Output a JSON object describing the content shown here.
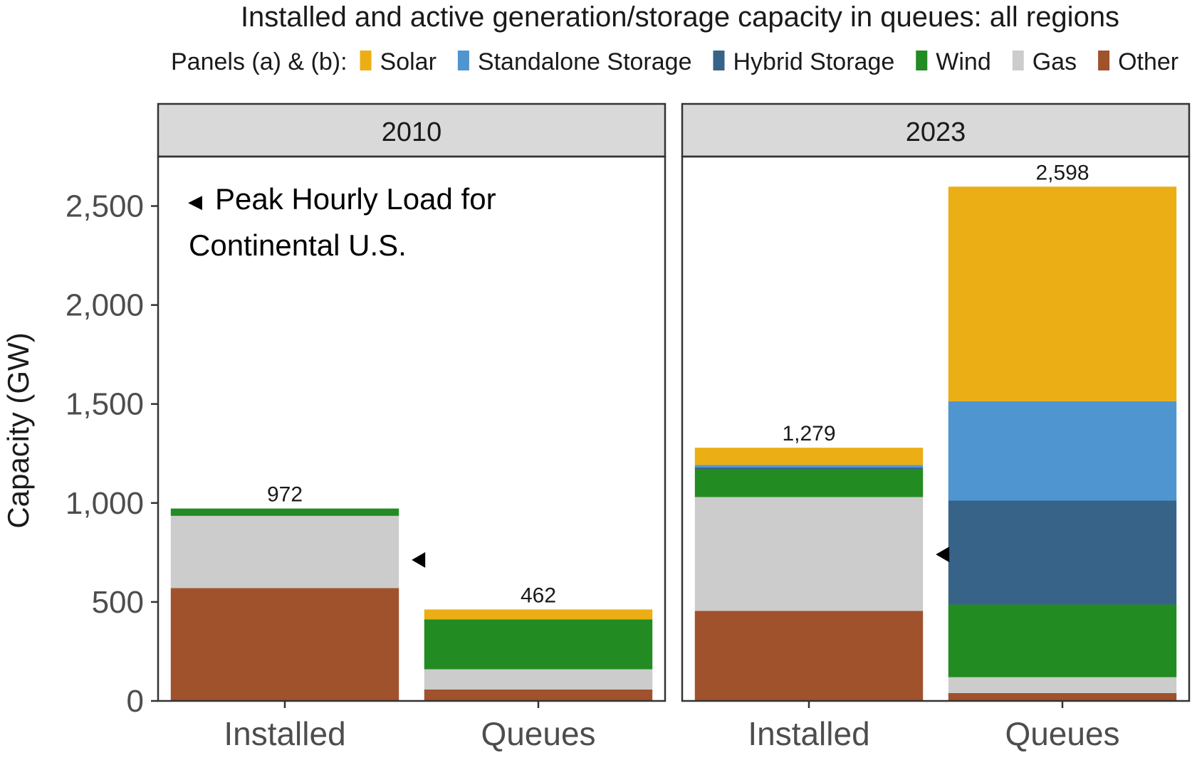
{
  "chart_data": {
    "type": "bar",
    "stacked": true,
    "title": "Installed and active generation/storage capacity in queues: all regions",
    "legend_prefix": "Panels (a) & (b):",
    "legend_position": "top",
    "ylabel": "Capacity (GW)",
    "ylim": [
      0,
      2750
    ],
    "yticks": [
      0,
      500,
      1000,
      1500,
      2000,
      2500
    ],
    "ytick_labels": [
      "0",
      "500",
      "1,000",
      "1,500",
      "2,000",
      "2,500"
    ],
    "grid": false,
    "categories": [
      "Installed",
      "Queues"
    ],
    "series_meta": [
      {
        "name": "Solar",
        "color": "#EBAE14"
      },
      {
        "name": "Standalone Storage",
        "color": "#4F95D0"
      },
      {
        "name": "Hybrid Storage",
        "color": "#376389"
      },
      {
        "name": "Wind",
        "color": "#228B22"
      },
      {
        "name": "Gas",
        "color": "#CCCCCC"
      },
      {
        "name": "Other",
        "color": "#A0522D"
      }
    ],
    "stack_order_bottom_up": [
      "Other",
      "Gas",
      "Wind",
      "Hybrid Storage",
      "Standalone Storage",
      "Solar"
    ],
    "panels": [
      {
        "label": "2010",
        "bars": [
          {
            "category": "Installed",
            "total": 972,
            "total_label": "972",
            "segments": {
              "Other": 570,
              "Gas": 365,
              "Wind": 37,
              "Hybrid Storage": 0,
              "Standalone Storage": 0,
              "Solar": 0
            }
          },
          {
            "category": "Queues",
            "total": 462,
            "total_label": "462",
            "segments": {
              "Other": 58,
              "Gas": 102,
              "Wind": 252,
              "Hybrid Storage": 0,
              "Standalone Storage": 0,
              "Solar": 50
            }
          }
        ],
        "peak_load": 712
      },
      {
        "label": "2023",
        "bars": [
          {
            "category": "Installed",
            "total": 1279,
            "total_label": "1,279",
            "segments": {
              "Other": 455,
              "Gas": 575,
              "Wind": 140,
              "Hybrid Storage": 10,
              "Standalone Storage": 12,
              "Solar": 87
            }
          },
          {
            "category": "Queues",
            "total": 2598,
            "total_label": "2,598",
            "segments": {
              "Other": 40,
              "Gas": 80,
              "Wind": 367,
              "Hybrid Storage": 525,
              "Standalone Storage": 502,
              "Solar": 1084
            }
          }
        ],
        "peak_load": 740
      }
    ],
    "annotation": {
      "marker": "◀",
      "line1": "Peak Hourly Load for",
      "line2": "Continental U.S."
    }
  }
}
